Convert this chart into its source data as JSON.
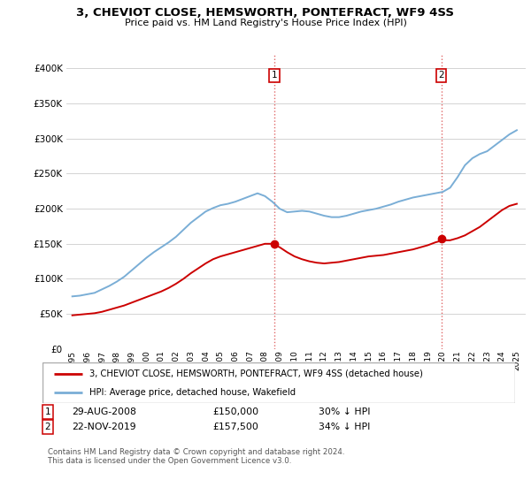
{
  "title": "3, CHEVIOT CLOSE, HEMSWORTH, PONTEFRACT, WF9 4SS",
  "subtitle": "Price paid vs. HM Land Registry's House Price Index (HPI)",
  "property_color": "#cc0000",
  "hpi_color": "#7aaed6",
  "sale1_date_num": 2008.66,
  "sale1_price": 150000,
  "sale1_label": "1",
  "sale1_text": "29-AUG-2008",
  "sale1_pct": "30% ↓ HPI",
  "sale2_date_num": 2019.9,
  "sale2_price": 157500,
  "sale2_label": "2",
  "sale2_text": "22-NOV-2019",
  "sale2_pct": "34% ↓ HPI",
  "legend_property": "3, CHEVIOT CLOSE, HEMSWORTH, PONTEFRACT, WF9 4SS (detached house)",
  "legend_hpi": "HPI: Average price, detached house, Wakefield",
  "footer": "Contains HM Land Registry data © Crown copyright and database right 2024.\nThis data is licensed under the Open Government Licence v3.0.",
  "ylim": [
    0,
    420000
  ],
  "yticks": [
    0,
    50000,
    100000,
    150000,
    200000,
    250000,
    300000,
    350000,
    400000
  ],
  "xlim_start": 1994.6,
  "xlim_end": 2025.6,
  "hpi_years": [
    1995.0,
    1995.5,
    1996.0,
    1996.5,
    1997.0,
    1997.5,
    1998.0,
    1998.5,
    1999.0,
    1999.5,
    2000.0,
    2000.5,
    2001.0,
    2001.5,
    2002.0,
    2002.5,
    2003.0,
    2003.5,
    2004.0,
    2004.5,
    2005.0,
    2005.5,
    2006.0,
    2006.5,
    2007.0,
    2007.5,
    2008.0,
    2008.5,
    2009.0,
    2009.5,
    2010.0,
    2010.5,
    2011.0,
    2011.5,
    2012.0,
    2012.5,
    2013.0,
    2013.5,
    2014.0,
    2014.5,
    2015.0,
    2015.5,
    2016.0,
    2016.5,
    2017.0,
    2017.5,
    2018.0,
    2018.5,
    2019.0,
    2019.5,
    2020.0,
    2020.5,
    2021.0,
    2021.5,
    2022.0,
    2022.5,
    2023.0,
    2023.5,
    2024.0,
    2024.5,
    2025.0
  ],
  "hpi_values": [
    75000,
    76000,
    78000,
    80000,
    85000,
    90000,
    96000,
    103000,
    112000,
    121000,
    130000,
    138000,
    145000,
    152000,
    160000,
    170000,
    180000,
    188000,
    196000,
    201000,
    205000,
    207000,
    210000,
    214000,
    218000,
    222000,
    218000,
    210000,
    200000,
    195000,
    196000,
    197000,
    196000,
    193000,
    190000,
    188000,
    188000,
    190000,
    193000,
    196000,
    198000,
    200000,
    203000,
    206000,
    210000,
    213000,
    216000,
    218000,
    220000,
    222000,
    224000,
    230000,
    245000,
    262000,
    272000,
    278000,
    282000,
    290000,
    298000,
    306000,
    312000
  ],
  "prop_years": [
    1995.0,
    1995.5,
    1996.0,
    1996.5,
    1997.0,
    1997.5,
    1998.0,
    1998.5,
    1999.0,
    1999.5,
    2000.0,
    2000.5,
    2001.0,
    2001.5,
    2002.0,
    2002.5,
    2003.0,
    2003.5,
    2004.0,
    2004.5,
    2005.0,
    2005.5,
    2006.0,
    2006.5,
    2007.0,
    2007.5,
    2008.0,
    2008.5,
    2009.0,
    2009.5,
    2010.0,
    2010.5,
    2011.0,
    2011.5,
    2012.0,
    2012.5,
    2013.0,
    2013.5,
    2014.0,
    2014.5,
    2015.0,
    2015.5,
    2016.0,
    2016.5,
    2017.0,
    2017.5,
    2018.0,
    2018.5,
    2019.0,
    2019.5,
    2020.0,
    2020.5,
    2021.0,
    2021.5,
    2022.0,
    2022.5,
    2023.0,
    2023.5,
    2024.0,
    2024.5,
    2025.0
  ],
  "prop_values": [
    48000,
    49000,
    50000,
    51000,
    53000,
    56000,
    59000,
    62000,
    66000,
    70000,
    74000,
    78000,
    82000,
    87000,
    93000,
    100000,
    108000,
    115000,
    122000,
    128000,
    132000,
    135000,
    138000,
    141000,
    144000,
    147000,
    150000,
    150000,
    145000,
    138000,
    132000,
    128000,
    125000,
    123000,
    122000,
    123000,
    124000,
    126000,
    128000,
    130000,
    132000,
    133000,
    134000,
    136000,
    138000,
    140000,
    142000,
    145000,
    148000,
    152000,
    155000,
    155000,
    158000,
    162000,
    168000,
    174000,
    182000,
    190000,
    198000,
    204000,
    207000
  ]
}
